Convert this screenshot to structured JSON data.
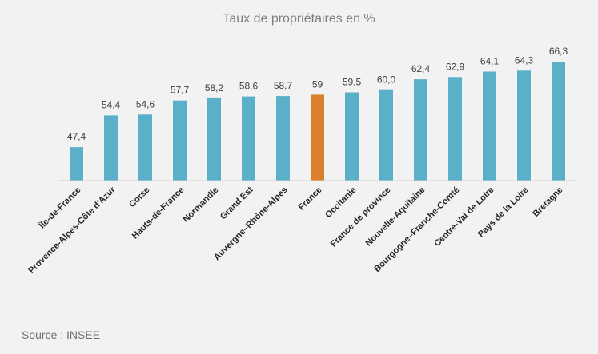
{
  "chart_data": {
    "type": "bar",
    "title": "Taux de propriétaires en %",
    "xlabel": "",
    "ylabel": "",
    "ylim": [
      40,
      70
    ],
    "grid": false,
    "categories": [
      "Île-de-France",
      "Provence-Alpes-Côte d'Azur",
      "Corse",
      "Hauts-de-France",
      "Normandie",
      "Grand Est",
      "Auvergne–Rhône-Alpes",
      "France",
      "Occitanie",
      "France de province",
      "Nouvelle-Aquitaine",
      "Bourgogne–Franche-Comté",
      "Centre-Val de Loire",
      "Pays de la Loire",
      "Bretagne"
    ],
    "values": [
      47.4,
      54.4,
      54.6,
      57.7,
      58.2,
      58.6,
      58.7,
      59,
      59.5,
      60.0,
      62.4,
      62.9,
      64.1,
      64.3,
      66.3
    ],
    "data_labels": [
      "47,4",
      "54,4",
      "54,6",
      "57,7",
      "58,2",
      "58,6",
      "58,7",
      "59",
      "59,5",
      "60,0",
      "62,4",
      "62,9",
      "64,1",
      "64,3",
      "66,3"
    ],
    "highlight_category": "France",
    "colors": {
      "bar": "#5aafc9",
      "highlight": "#d9822b",
      "axis": "#d0d0d0"
    }
  },
  "footer": {
    "source": "Source : INSEE"
  }
}
